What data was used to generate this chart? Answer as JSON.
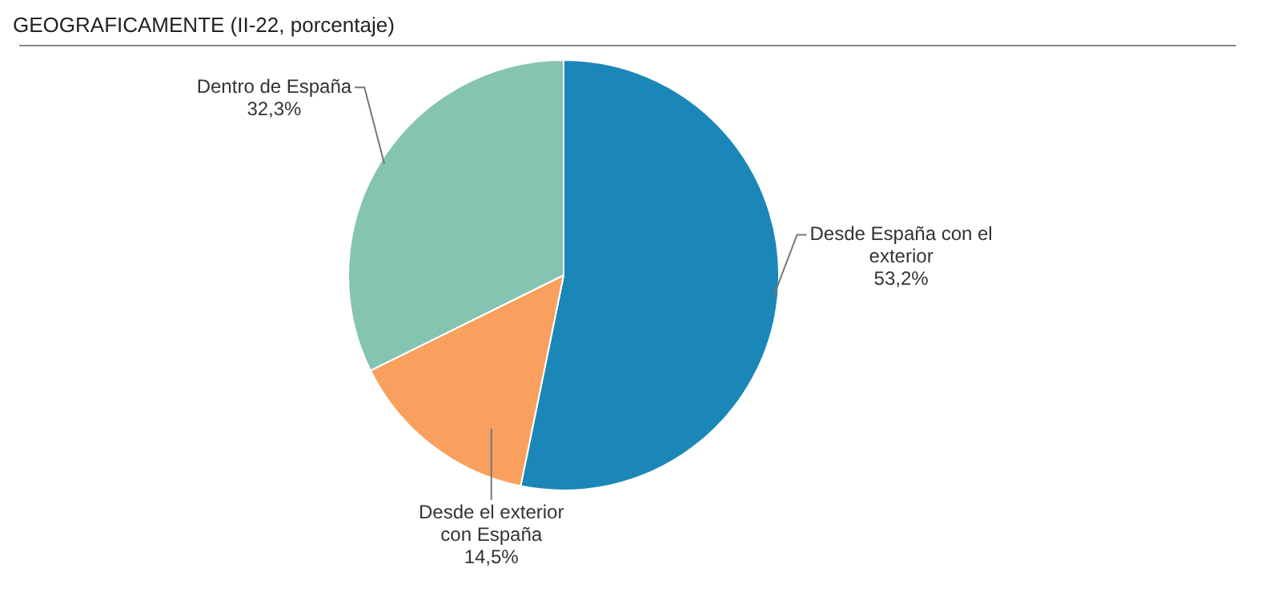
{
  "chart_data": {
    "type": "pie",
    "title": "GEOGRAFICAMENTE (II-22, porcentaje)",
    "categories": [
      "Desde España con el exterior",
      "Desde el exterior con España",
      "Dentro de España"
    ],
    "values": [
      53.2,
      14.5,
      32.3
    ],
    "value_labels": [
      "53,2%",
      "14,5%",
      "32,3%"
    ],
    "colors": [
      "#1a87b8",
      "#f9a05f",
      "#86c4b2"
    ],
    "legend": false
  }
}
